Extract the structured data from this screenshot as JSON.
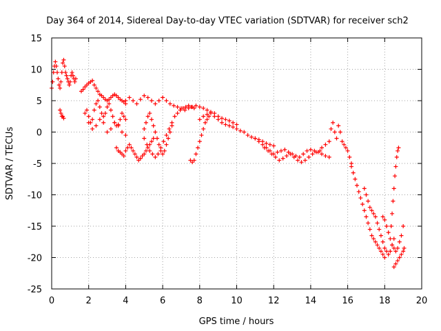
{
  "chart_data": {
    "type": "scatter",
    "title": "Day 364 of 2014, Sidereal Day-to-day VTEC variation (SDTVAR) for receiver sch2",
    "xlabel": "GPS time / hours",
    "ylabel": "SDTVAR / TECUs",
    "xlim": [
      0,
      20
    ],
    "ylim": [
      -25,
      15
    ],
    "xticks": [
      0,
      2,
      4,
      6,
      8,
      10,
      12,
      14,
      16,
      18,
      20
    ],
    "yticks": [
      -25,
      -20,
      -15,
      -10,
      -5,
      0,
      5,
      10,
      15
    ],
    "grid": true,
    "marker": "+",
    "color": "#ff0000",
    "series": [
      {
        "name": "SDTVAR",
        "x": [
          0.0,
          0.05,
          0.1,
          0.15,
          0.2,
          0.25,
          0.3,
          0.35,
          0.4,
          0.45,
          0.5,
          0.55,
          0.6,
          0.65,
          0.7,
          0.75,
          0.8,
          0.85,
          0.9,
          0.95,
          1.0,
          1.05,
          1.1,
          1.15,
          1.2,
          1.25,
          1.3,
          0.45,
          0.5,
          0.55,
          0.6,
          0.65,
          1.6,
          1.7,
          1.8,
          1.9,
          2.0,
          2.1,
          2.2,
          2.3,
          2.4,
          2.5,
          2.6,
          2.7,
          2.8,
          2.9,
          3.0,
          3.1,
          3.2,
          3.3,
          3.4,
          3.5,
          3.6,
          3.7,
          3.8,
          3.9,
          4.0,
          1.8,
          1.9,
          2.0,
          2.1,
          2.2,
          2.3,
          2.4,
          2.5,
          2.6,
          2.7,
          2.8,
          2.9,
          3.0,
          3.1,
          3.2,
          3.3,
          3.4,
          3.5,
          3.6,
          3.7,
          3.8,
          3.9,
          4.0,
          2.0,
          2.2,
          2.4,
          2.6,
          2.8,
          3.0,
          3.2,
          3.4,
          3.6,
          3.8,
          4.0,
          3.5,
          3.6,
          3.7,
          3.8,
          3.9,
          4.0,
          4.1,
          4.2,
          4.3,
          4.4,
          4.5,
          4.6,
          4.7,
          4.8,
          4.9,
          5.0,
          5.1,
          5.2,
          5.3,
          5.4,
          5.5,
          4.0,
          4.2,
          4.4,
          4.6,
          4.8,
          5.0,
          5.2,
          5.4,
          5.6,
          5.8,
          6.0,
          5.0,
          5.1,
          5.2,
          5.3,
          5.4,
          5.5,
          5.6,
          5.7,
          5.8,
          5.9,
          6.0,
          6.1,
          6.2,
          6.3,
          6.4,
          6.5,
          5.0,
          5.15,
          5.3,
          5.45,
          5.6,
          5.75,
          5.9,
          6.05,
          6.2,
          6.35,
          6.5,
          6.65,
          6.8,
          6.95,
          7.1,
          7.25,
          7.4,
          7.55,
          7.7,
          7.5,
          7.6,
          7.7,
          7.8,
          7.9,
          8.0,
          8.1,
          8.2,
          8.3,
          8.4,
          8.5,
          6.0,
          6.2,
          6.4,
          6.6,
          6.8,
          7.0,
          7.2,
          7.4,
          7.6,
          7.8,
          8.0,
          8.2,
          8.4,
          8.6,
          8.8,
          9.0,
          9.2,
          9.4,
          9.6,
          9.8,
          10.0,
          8.0,
          8.2,
          8.4,
          8.6,
          8.8,
          9.0,
          9.2,
          9.4,
          9.6,
          9.8,
          10.0,
          10.2,
          10.4,
          10.6,
          10.8,
          11.0,
          11.2,
          11.4,
          11.6,
          11.8,
          12.0,
          11.0,
          11.2,
          11.4,
          11.6,
          11.8,
          12.0,
          12.2,
          12.4,
          12.6,
          12.8,
          13.0,
          13.2,
          13.4,
          13.6,
          13.8,
          14.0,
          14.2,
          14.4,
          14.6,
          14.8,
          15.0,
          11.5,
          11.7,
          11.9,
          12.1,
          12.3,
          12.5,
          12.7,
          12.9,
          13.1,
          13.3,
          13.5,
          13.7,
          13.9,
          14.1,
          14.3,
          14.5,
          14.6,
          14.8,
          15.0,
          15.1,
          15.2,
          15.3,
          15.4,
          15.5,
          15.6,
          15.7,
          15.8,
          15.9,
          16.0,
          16.1,
          16.2,
          16.2,
          16.3,
          16.4,
          16.5,
          16.6,
          16.7,
          16.8,
          16.9,
          17.0,
          17.1,
          17.2,
          17.3,
          17.4,
          17.5,
          17.6,
          17.7,
          17.8,
          17.9,
          18.0,
          16.9,
          17.0,
          17.1,
          17.2,
          17.3,
          17.4,
          17.5,
          17.6,
          17.7,
          17.8,
          17.9,
          18.0,
          18.1,
          18.2,
          18.3,
          18.4,
          18.5,
          17.9,
          18.0,
          18.1,
          18.2,
          18.3,
          18.4,
          18.5,
          18.6,
          18.7,
          18.8,
          18.9,
          19.0,
          18.35,
          18.4,
          18.45,
          18.5,
          18.55,
          18.6,
          18.65,
          18.7,
          18.75,
          18.5,
          18.6,
          18.7,
          18.8,
          18.9,
          19.0,
          19.05
        ],
        "y": [
          7.0,
          8.0,
          9.5,
          10.5,
          11.2,
          10.5,
          9.5,
          8.5,
          7.5,
          7.0,
          8.0,
          9.5,
          11.0,
          11.5,
          10.5,
          9.5,
          9.0,
          8.5,
          8.0,
          7.5,
          8.0,
          9.0,
          9.5,
          9.0,
          8.5,
          8.0,
          8.5,
          3.5,
          3.0,
          2.5,
          2.5,
          2.2,
          6.5,
          6.8,
          7.2,
          7.5,
          7.8,
          8.0,
          8.2,
          7.5,
          7.0,
          6.5,
          6.0,
          5.8,
          5.5,
          5.2,
          5.0,
          5.2,
          5.5,
          5.8,
          6.0,
          5.8,
          5.5,
          5.2,
          5.0,
          4.8,
          4.5,
          3.0,
          3.5,
          2.5,
          1.5,
          2.0,
          3.5,
          4.5,
          5.0,
          4.0,
          3.0,
          2.5,
          3.0,
          4.0,
          4.5,
          3.5,
          2.5,
          1.5,
          1.0,
          1.2,
          2.0,
          3.0,
          2.5,
          2.0,
          1.5,
          0.5,
          1.0,
          2.0,
          1.5,
          0.0,
          0.5,
          1.5,
          1.0,
          0.0,
          -0.5,
          -2.5,
          -3.0,
          -3.2,
          -3.5,
          -3.8,
          -3.0,
          -2.5,
          -2.0,
          -2.5,
          -3.0,
          -3.5,
          -4.0,
          -4.5,
          -4.2,
          -3.8,
          -3.5,
          -3.0,
          -2.5,
          -2.0,
          -1.5,
          -1.0,
          5.0,
          5.5,
          5.0,
          4.5,
          5.2,
          5.8,
          5.5,
          5.0,
          4.5,
          5.0,
          5.5,
          0.5,
          1.5,
          2.5,
          3.0,
          2.0,
          1.0,
          0.0,
          -1.0,
          -2.0,
          -3.0,
          -3.5,
          -3.0,
          -2.0,
          -1.0,
          0.0,
          1.0,
          -1.0,
          -2.0,
          -3.0,
          -3.5,
          -4.0,
          -3.5,
          -2.5,
          -1.5,
          -0.5,
          0.5,
          1.5,
          2.5,
          3.0,
          3.5,
          3.8,
          4.0,
          4.2,
          4.0,
          3.8,
          -4.5,
          -4.8,
          -4.5,
          -3.5,
          -2.5,
          -1.5,
          -0.5,
          0.5,
          1.5,
          2.0,
          2.5,
          5.5,
          5.0,
          4.5,
          4.2,
          4.0,
          3.8,
          3.5,
          3.8,
          4.0,
          4.2,
          4.0,
          3.8,
          3.5,
          3.2,
          3.0,
          2.5,
          2.2,
          2.0,
          1.8,
          1.5,
          1.2,
          2.0,
          2.5,
          2.8,
          3.0,
          2.5,
          2.0,
          1.5,
          1.2,
          1.0,
          0.8,
          0.5,
          0.2,
          0.0,
          -0.5,
          -0.8,
          -1.0,
          -1.2,
          -1.5,
          -1.8,
          -2.0,
          -2.2,
          -1.0,
          -1.5,
          -2.0,
          -2.5,
          -3.0,
          -3.5,
          -3.2,
          -3.0,
          -2.8,
          -3.2,
          -3.5,
          -3.8,
          -4.0,
          -3.5,
          -3.0,
          -2.8,
          -3.0,
          -3.2,
          -3.5,
          -3.8,
          -4.0,
          -2.5,
          -3.0,
          -3.5,
          -4.0,
          -4.5,
          -4.2,
          -3.8,
          -3.5,
          -4.0,
          -4.5,
          -4.8,
          -4.5,
          -4.0,
          -3.5,
          -3.2,
          -3.0,
          -2.5,
          -2.0,
          -1.5,
          0.5,
          1.5,
          0.0,
          -1.0,
          1.0,
          0.0,
          -1.5,
          -2.0,
          -2.5,
          -3.0,
          -4.0,
          -5.0,
          -5.5,
          -6.5,
          -7.5,
          -8.5,
          -9.5,
          -10.5,
          -11.5,
          -12.5,
          -13.5,
          -14.5,
          -15.5,
          -16.5,
          -17.0,
          -17.5,
          -18.0,
          -18.5,
          -19.0,
          -19.5,
          -20.0,
          -9.0,
          -10.0,
          -11.0,
          -12.0,
          -12.5,
          -13.0,
          -13.5,
          -14.5,
          -15.5,
          -16.5,
          -17.5,
          -18.5,
          -19.0,
          -19.5,
          -19.0,
          -18.0,
          -17.0,
          -13.5,
          -14.0,
          -15.0,
          -16.0,
          -17.0,
          -18.0,
          -18.5,
          -19.0,
          -18.5,
          -17.5,
          -16.5,
          -15.0,
          -15.0,
          -13.0,
          -11.0,
          -9.0,
          -7.0,
          -5.5,
          -4.0,
          -3.0,
          -2.5,
          -21.5,
          -21.0,
          -20.5,
          -20.0,
          -19.5,
          -19.0,
          -18.5
        ]
      }
    ]
  }
}
